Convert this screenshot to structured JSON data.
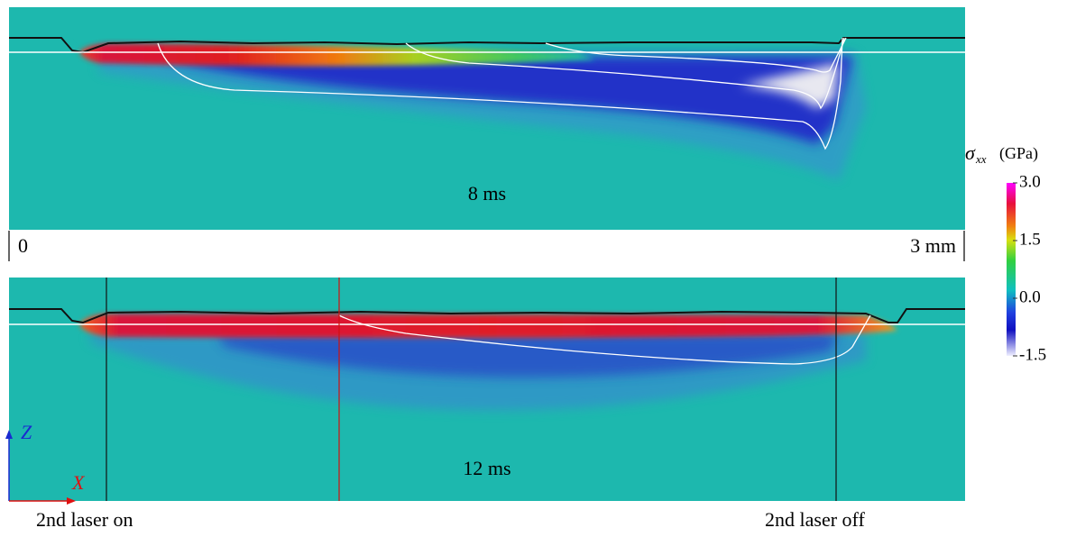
{
  "panels": [
    {
      "time": "8 ms"
    },
    {
      "time": "12 ms"
    }
  ],
  "scale": {
    "start": "0",
    "end": "3 mm"
  },
  "colorbar": {
    "symbol": "σ",
    "subscript": "xx",
    "unit": "(GPa)",
    "lim": [
      -1.5,
      3.0
    ],
    "ticks": [
      {
        "value": 3.0,
        "label": "3.0"
      },
      {
        "value": 1.5,
        "label": "1.5"
      },
      {
        "value": 0,
        "label": "0.0"
      },
      {
        "value": -1.5,
        "label": "-1.5"
      }
    ]
  },
  "axes": {
    "z": "Z",
    "x": "X"
  },
  "annotations": {
    "laser_on": "2nd laser on",
    "laser_off": "2nd laser off"
  }
}
